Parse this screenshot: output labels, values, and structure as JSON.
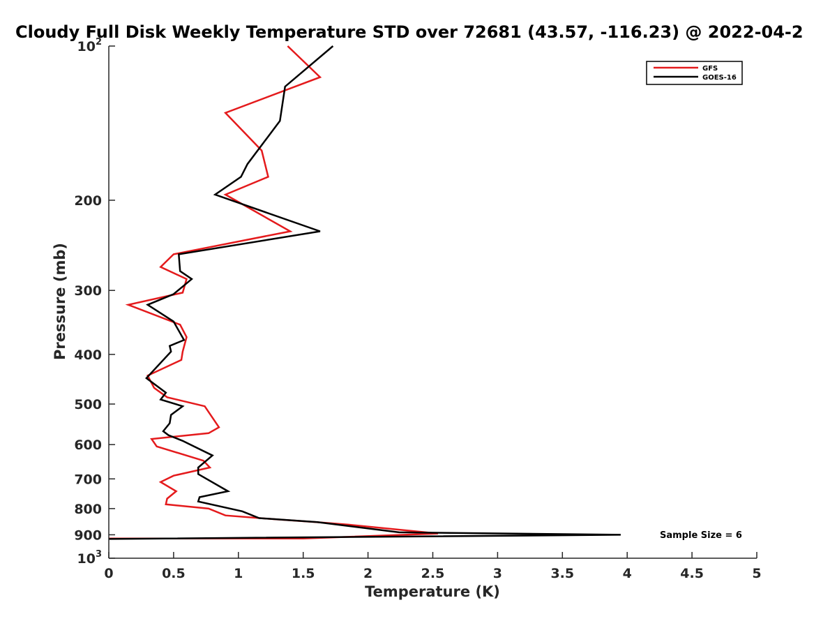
{
  "chart_data": {
    "type": "line",
    "title": "Cloudy Full Disk Weekly Temperature STD over 72681 (43.57, -116.23) @ 2022-04-2",
    "xlabel": "Temperature (K)",
    "ylabel": "Pressure (mb)",
    "xlim": [
      0,
      5
    ],
    "ylim": [
      1000,
      100
    ],
    "yscale": "log",
    "y_reversed": true,
    "xticks": [
      0,
      0.5,
      1,
      1.5,
      2,
      2.5,
      3,
      3.5,
      4,
      4.5,
      5
    ],
    "xtick_labels": [
      "0",
      "0.5",
      "1",
      "1.5",
      "2",
      "2.5",
      "3",
      "3.5",
      "4",
      "4.5",
      "5"
    ],
    "yticks": [
      100,
      200,
      300,
      400,
      500,
      600,
      700,
      800,
      900,
      1000
    ],
    "ytick_labels": [
      {
        "base": "10",
        "exp": "2"
      },
      {
        "base": "200"
      },
      {
        "base": "300"
      },
      {
        "base": "400"
      },
      {
        "base": "500"
      },
      {
        "base": "600"
      },
      {
        "base": "700"
      },
      {
        "base": "800"
      },
      {
        "base": "900"
      },
      {
        "base": "10",
        "exp": "3"
      }
    ],
    "grid": false,
    "legend_position": "top-right",
    "annotation": "Sample Size = 6",
    "series": [
      {
        "name": "GFS",
        "color": "#e41a1c",
        "points": [
          [
            1.38,
            100
          ],
          [
            1.63,
            115
          ],
          [
            0.9,
            135
          ],
          [
            1.18,
            160
          ],
          [
            1.23,
            180
          ],
          [
            0.9,
            195
          ],
          [
            1.4,
            230
          ],
          [
            0.5,
            255
          ],
          [
            0.4,
            270
          ],
          [
            0.6,
            285
          ],
          [
            0.57,
            303
          ],
          [
            0.15,
            320
          ],
          [
            0.55,
            350
          ],
          [
            0.6,
            370
          ],
          [
            0.57,
            395
          ],
          [
            0.56,
            410
          ],
          [
            0.3,
            440
          ],
          [
            0.35,
            465
          ],
          [
            0.45,
            485
          ],
          [
            0.74,
            505
          ],
          [
            0.85,
            555
          ],
          [
            0.77,
            570
          ],
          [
            0.33,
            585
          ],
          [
            0.37,
            605
          ],
          [
            0.73,
            645
          ],
          [
            0.78,
            665
          ],
          [
            0.5,
            690
          ],
          [
            0.4,
            710
          ],
          [
            0.52,
            740
          ],
          [
            0.45,
            765
          ],
          [
            0.44,
            785
          ],
          [
            0.77,
            800
          ],
          [
            0.9,
            825
          ],
          [
            1.3,
            840
          ],
          [
            1.6,
            850
          ],
          [
            1.85,
            860
          ],
          [
            2.54,
            895
          ],
          [
            1.5,
            915
          ],
          [
            0,
            915
          ]
        ]
      },
      {
        "name": "GOES-16",
        "color": "#000000",
        "points": [
          [
            1.73,
            100
          ],
          [
            1.36,
            120
          ],
          [
            1.32,
            140
          ],
          [
            1.07,
            170
          ],
          [
            1.02,
            180
          ],
          [
            0.82,
            195
          ],
          [
            1.63,
            230
          ],
          [
            0.54,
            255
          ],
          [
            0.55,
            275
          ],
          [
            0.64,
            285
          ],
          [
            0.5,
            305
          ],
          [
            0.3,
            320
          ],
          [
            0.5,
            345
          ],
          [
            0.58,
            375
          ],
          [
            0.47,
            385
          ],
          [
            0.48,
            395
          ],
          [
            0.29,
            445
          ],
          [
            0.44,
            475
          ],
          [
            0.4,
            490
          ],
          [
            0.57,
            505
          ],
          [
            0.48,
            525
          ],
          [
            0.47,
            545
          ],
          [
            0.42,
            565
          ],
          [
            0.46,
            575
          ],
          [
            0.57,
            590
          ],
          [
            0.8,
            630
          ],
          [
            0.69,
            665
          ],
          [
            0.69,
            685
          ],
          [
            0.92,
            740
          ],
          [
            0.7,
            760
          ],
          [
            0.69,
            775
          ],
          [
            1.03,
            810
          ],
          [
            1.16,
            835
          ],
          [
            1.61,
            850
          ],
          [
            2.24,
            890
          ],
          [
            3.95,
            900
          ],
          [
            0,
            917
          ]
        ]
      }
    ]
  }
}
